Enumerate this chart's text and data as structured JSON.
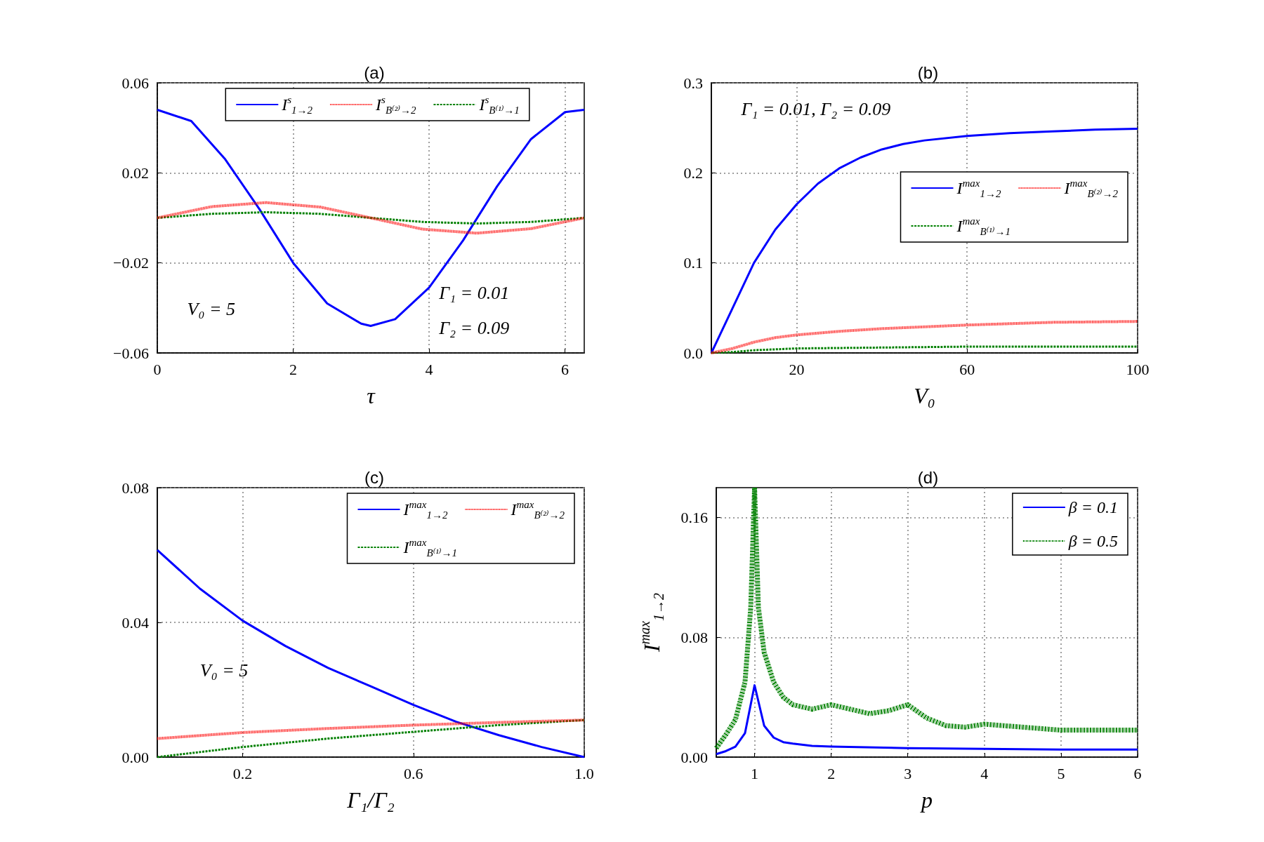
{
  "chart_data": [
    {
      "type": "line",
      "title": "(a)",
      "xlabel": "τ",
      "xlim": [
        0,
        6.283
      ],
      "xticks": [
        0,
        2,
        4,
        6
      ],
      "ylim": [
        -0.06,
        0.06
      ],
      "yticks": [
        {
          "value": -0.06,
          "label": "−0.06"
        },
        {
          "value": -0.02,
          "label": "−0.02"
        },
        0.02,
        0.06
      ],
      "grid": true,
      "legend": "top",
      "annotations": [
        "V₀ = 5",
        "Γ₁ = 0.01",
        "Γ₂ = 0.09"
      ],
      "series": [
        {
          "name": "I$^{s}$$_{1→2}$",
          "color": "#0000ff",
          "line_style": "solid",
          "x": [
            0,
            0.5,
            1,
            1.5,
            2,
            2.5,
            3,
            3.14,
            3.5,
            4,
            4.5,
            5,
            5.5,
            6,
            6.283
          ],
          "values": [
            0.048,
            0.043,
            0.026,
            0.004,
            -0.02,
            -0.038,
            -0.047,
            -0.048,
            -0.045,
            -0.031,
            -0.01,
            0.014,
            0.035,
            0.047,
            0.048
          ]
        },
        {
          "name": "I$^{s}$$_{B⁽¹⁾→1}$",
          "color": "#008000",
          "line_style": "dashed",
          "x": [
            0,
            0.8,
            1.6,
            2.4,
            3.14,
            3.9,
            4.7,
            5.5,
            6.283
          ],
          "values": [
            0,
            0.0018,
            0.0025,
            0.0018,
            0,
            -0.0018,
            -0.0025,
            -0.0018,
            0
          ]
        },
        {
          "name": "I$^{s}$$_{B⁽²⁾→2}$",
          "color": "#ff0000",
          "line_style": "dotted",
          "x": [
            0,
            0.8,
            1.6,
            2.4,
            3.14,
            3.9,
            4.7,
            5.5,
            6.283
          ],
          "values": [
            0,
            0.005,
            0.0068,
            0.0048,
            0,
            -0.005,
            -0.0068,
            -0.0048,
            0
          ]
        }
      ]
    },
    {
      "type": "line",
      "title": "(b)",
      "xlabel": "V₀",
      "xlim": [
        0,
        100
      ],
      "xticks": [
        20,
        60,
        100
      ],
      "ylim": [
        0,
        0.3
      ],
      "yticks": [
        {
          "value": 0,
          "label": "0.0"
        },
        0.1,
        0.2,
        0.3
      ],
      "grid": true,
      "legend": "right",
      "annotations": [
        "Γ₁ = 0.01, Γ₂ = 0.09"
      ],
      "series": [
        {
          "name": "I$^{max}$$_{1→2}$",
          "color": "#0000ff",
          "line_style": "solid",
          "x": [
            0,
            5,
            10,
            15,
            20,
            25,
            30,
            35,
            40,
            45,
            50,
            60,
            70,
            80,
            90,
            100
          ],
          "values": [
            0,
            0.05,
            0.1,
            0.137,
            0.165,
            0.188,
            0.205,
            0.217,
            0.226,
            0.232,
            0.236,
            0.241,
            0.244,
            0.246,
            0.248,
            0.249
          ]
        },
        {
          "name": "I$^{max}$$_{B⁽¹⁾→1}$",
          "color": "#008000",
          "line_style": "dashed",
          "x": [
            0,
            5,
            10,
            20,
            40,
            60,
            100
          ],
          "values": [
            0,
            0.001,
            0.003,
            0.005,
            0.006,
            0.007,
            0.007
          ]
        },
        {
          "name": "I$^{max}$$_{B⁽²⁾→2}$",
          "color": "#ff0000",
          "line_style": "dotted",
          "x": [
            0,
            5,
            10,
            15,
            20,
            30,
            40,
            60,
            80,
            100
          ],
          "values": [
            0,
            0.005,
            0.012,
            0.017,
            0.02,
            0.024,
            0.027,
            0.031,
            0.034,
            0.035
          ]
        }
      ]
    },
    {
      "type": "line",
      "title": "(c)",
      "xlabel": "Γ₁/Γ₂",
      "xlim": [
        0,
        1
      ],
      "xticks": [
        0.2,
        0.6,
        {
          "value": 1,
          "label": "1.0"
        }
      ],
      "ylim": [
        0,
        0.08
      ],
      "yticks": [
        {
          "value": 0,
          "label": "0.00"
        },
        0.04,
        0.08
      ],
      "grid": true,
      "legend": "top right",
      "annotations": [
        "V₀ = 5"
      ],
      "series": [
        {
          "name": "I$^{max}$$_{1→2}$",
          "color": "#0000ff",
          "line_style": "solid",
          "x": [
            0,
            0.1,
            0.2,
            0.3,
            0.4,
            0.5,
            0.6,
            0.7,
            0.8,
            0.9,
            1
          ],
          "values": [
            0.0615,
            0.05,
            0.0405,
            0.033,
            0.0265,
            0.021,
            0.0155,
            0.0105,
            0.0065,
            0.003,
            0
          ]
        },
        {
          "name": "I$^{max}$$_{B⁽¹⁾→1}$",
          "color": "#008000",
          "line_style": "dashed",
          "x": [
            0,
            0.2,
            0.4,
            0.6,
            0.8,
            1
          ],
          "values": [
            0,
            0.003,
            0.0055,
            0.0075,
            0.0095,
            0.011
          ]
        },
        {
          "name": "I$^{max}$$_{B⁽²⁾→2}$",
          "color": "#ff0000",
          "line_style": "dotted",
          "x": [
            0,
            0.2,
            0.4,
            0.6,
            0.8,
            1
          ],
          "values": [
            0.0055,
            0.0073,
            0.0085,
            0.0095,
            0.0103,
            0.011
          ]
        }
      ]
    },
    {
      "type": "line",
      "title": "(d)",
      "xlabel": "p",
      "ylabel": "I$^{max}$$_{1→2}$",
      "xlim": [
        0.5,
        6
      ],
      "xticks": [
        1,
        2,
        3,
        4,
        5,
        6
      ],
      "ylim": [
        0,
        0.18
      ],
      "yticks": [
        {
          "value": 0,
          "label": "0.00"
        },
        0.08,
        0.16
      ],
      "grid": true,
      "legend": "top right",
      "series": [
        {
          "name": "β = 0.1",
          "color": "#0000ff",
          "line_style": "solid",
          "x": [
            0.5,
            0.625,
            0.75,
            0.875,
            1,
            1.125,
            1.25,
            1.375,
            1.5,
            1.75,
            2,
            3,
            4,
            5,
            6
          ],
          "values": [
            0.002,
            0.004,
            0.007,
            0.016,
            0.048,
            0.021,
            0.013,
            0.01,
            0.009,
            0.0075,
            0.007,
            0.006,
            0.0055,
            0.005,
            0.005
          ]
        },
        {
          "name": "β = 0.5",
          "color": "#008000",
          "line_style": "dashed",
          "x": [
            0.5,
            0.625,
            0.75,
            0.875,
            0.95,
            1,
            1.05,
            1.125,
            1.25,
            1.375,
            1.5,
            1.75,
            2,
            2.25,
            2.5,
            2.75,
            3,
            3.25,
            3.5,
            3.75,
            4,
            4.5,
            5,
            5.5,
            6
          ],
          "values": [
            0.006,
            0.015,
            0.025,
            0.05,
            0.1,
            0.18,
            0.1,
            0.07,
            0.05,
            0.04,
            0.035,
            0.032,
            0.035,
            0.032,
            0.029,
            0.031,
            0.035,
            0.026,
            0.021,
            0.02,
            0.022,
            0.02,
            0.018,
            0.018,
            0.018
          ]
        }
      ]
    }
  ]
}
